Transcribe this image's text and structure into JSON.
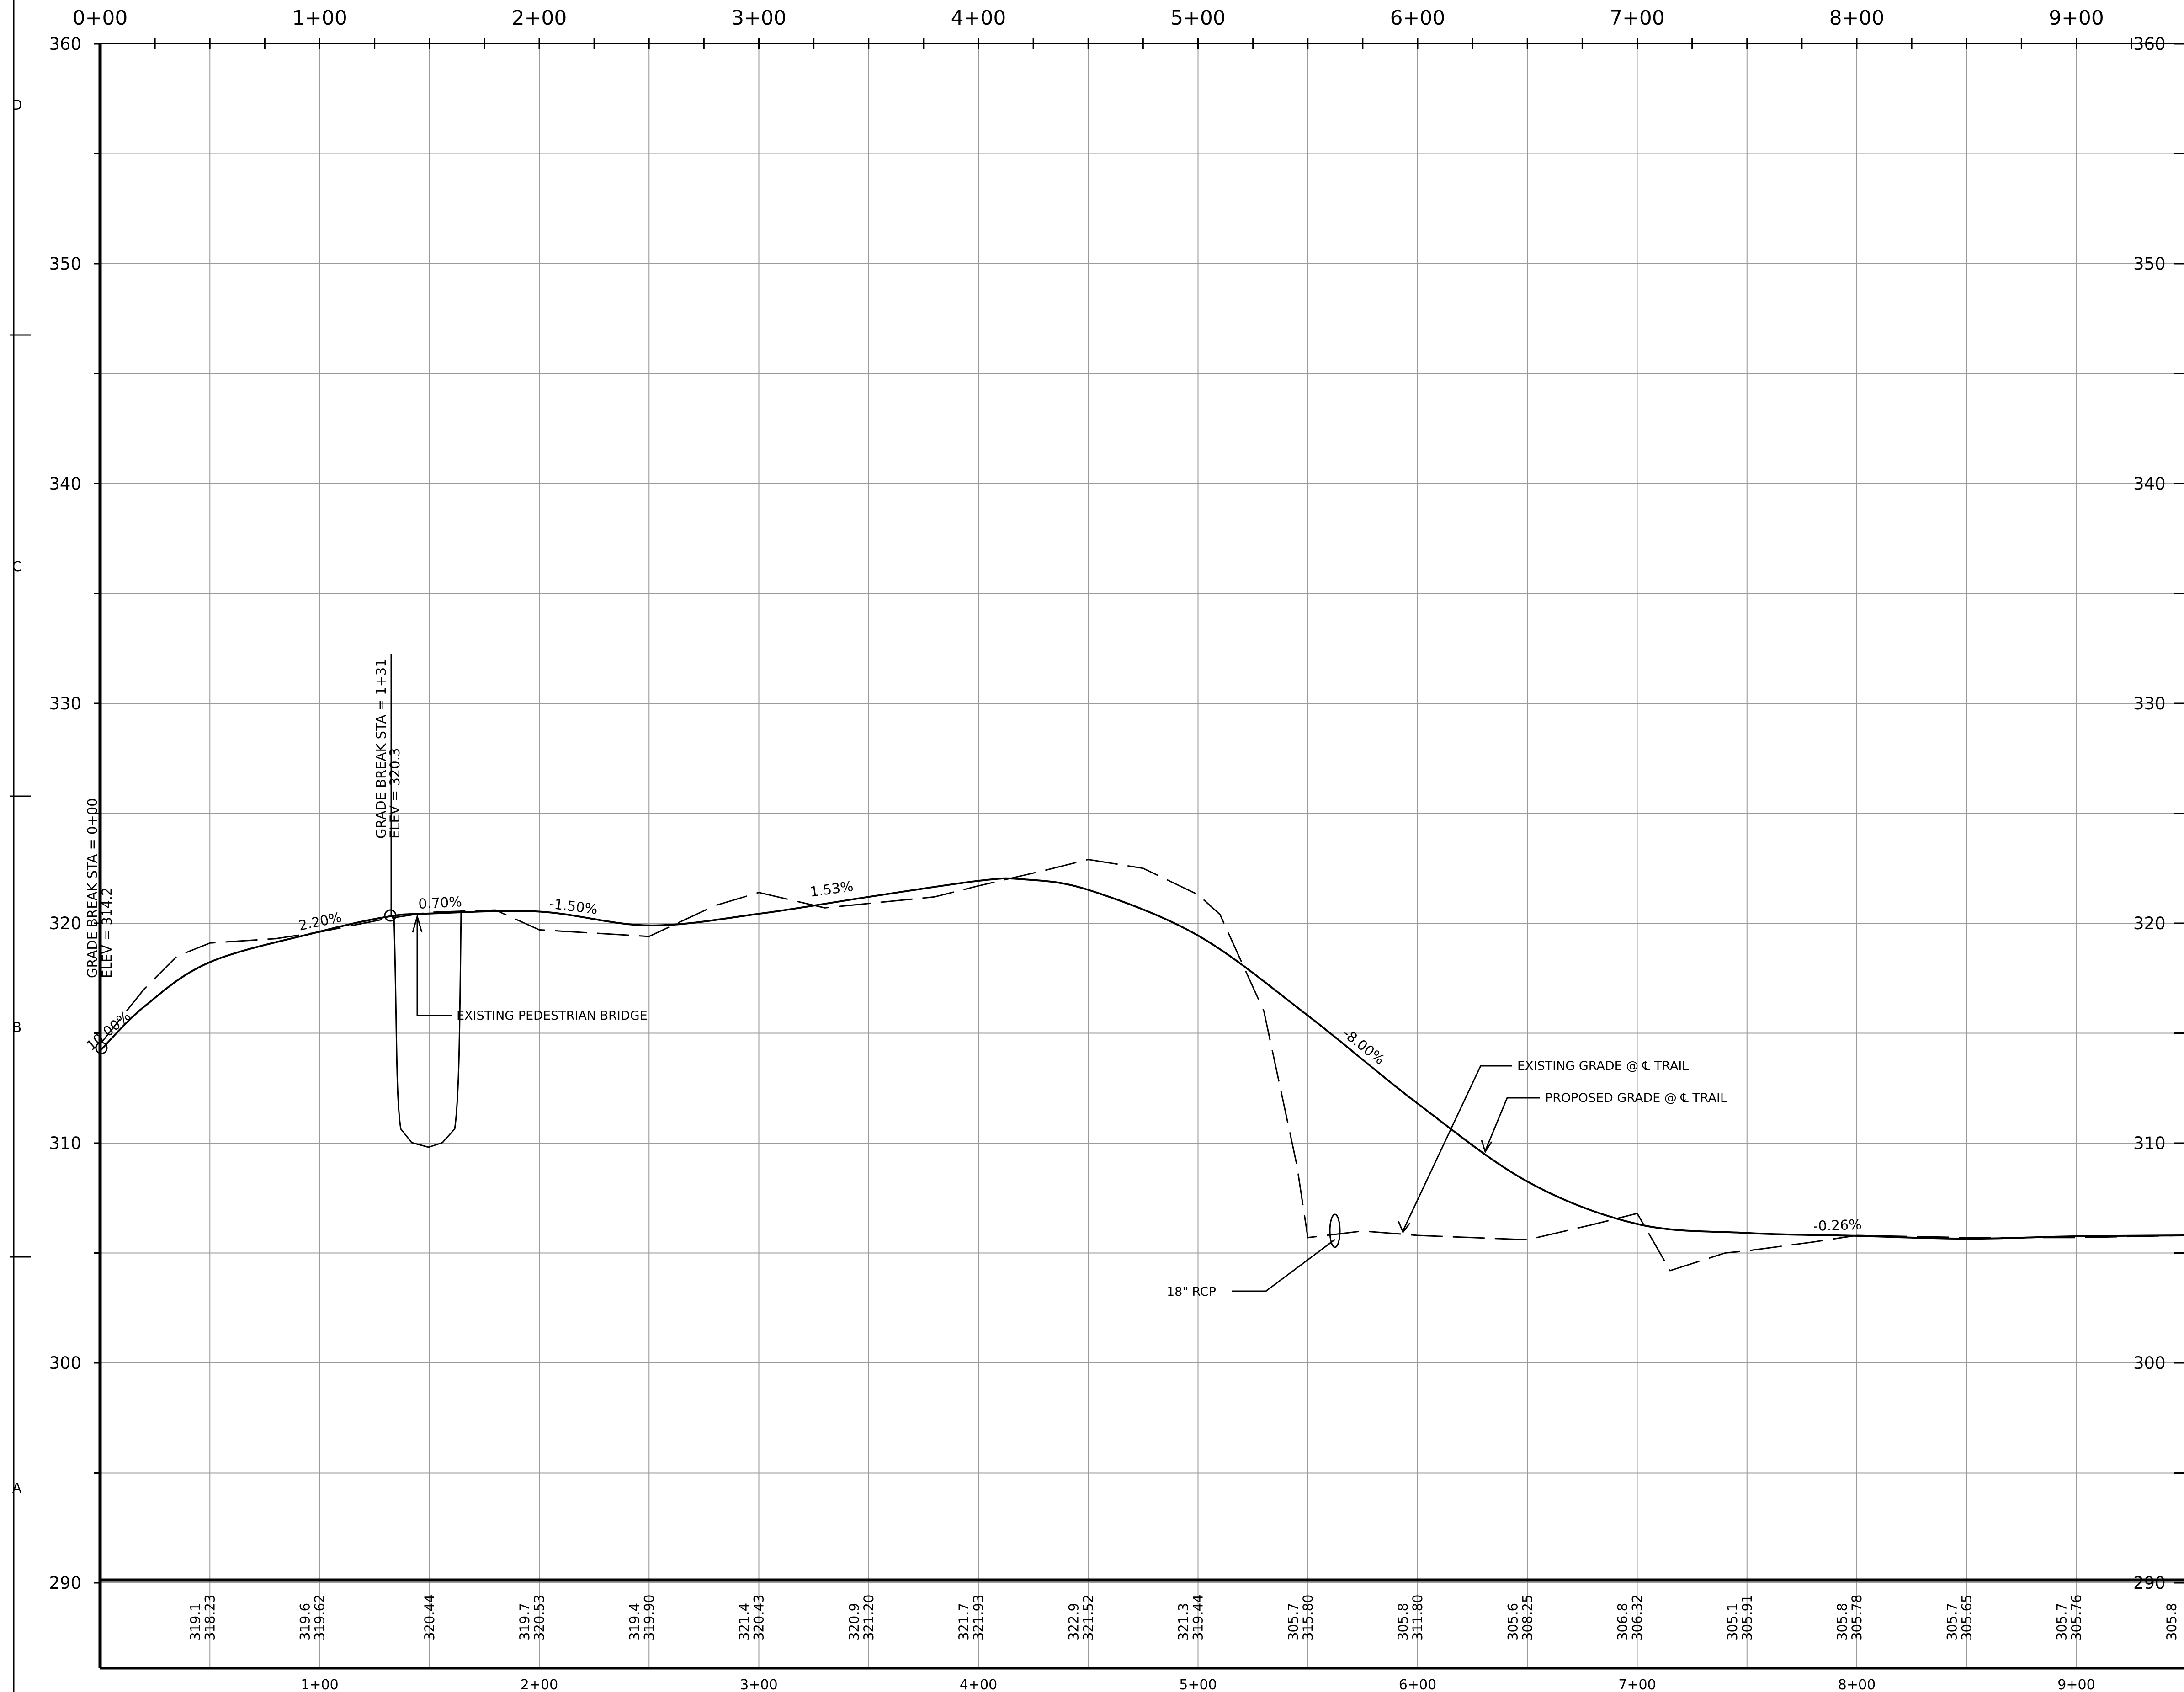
{
  "stations_top": [
    "0+00",
    "1+00",
    "2+00",
    "3+00",
    "4+00",
    "5+00",
    "6+00",
    "7+00",
    "8+00",
    "9+00",
    "9+"
  ],
  "stations_bottom": [
    "1+00",
    "2+00",
    "3+00",
    "4+00",
    "5+00",
    "6+00",
    "7+00",
    "8+00",
    "9+00"
  ],
  "elevations_left": [
    "360",
    "350",
    "340",
    "330",
    "320",
    "310",
    "300",
    "290"
  ],
  "elevations_right": [
    "360",
    "350",
    "340",
    "330",
    "320",
    "310",
    "300",
    "290"
  ],
  "zone_letters": [
    "D",
    "C",
    "B",
    "A"
  ],
  "grade_break_1": {
    "station_label": "GRADE BREAK STA = 0+00",
    "elev_label": "ELEV = 314.2"
  },
  "grade_break_2": {
    "station_label": "GRADE BREAK STA = 1+31",
    "elev_label": "ELEV = 320.3"
  },
  "slope_labels": [
    "10.00%",
    "2.20%",
    "0.70%",
    "-1.50%",
    "1.53%",
    "-8.00%",
    "-0.26%"
  ],
  "callouts": {
    "pedestrian_bridge": "EXISTING PEDESTRIAN BRIDGE",
    "existing_grade": "EXISTING GRADE @ ℄ TRAIL",
    "proposed_grade": "PROPOSED GRADE @ ℄ TRAIL",
    "rcp": "18\" RCP"
  },
  "elevation_table": [
    {
      "station": 50,
      "existing": "319.1",
      "proposed": "318.23"
    },
    {
      "station": 100,
      "existing": "319.6",
      "proposed": "319.62"
    },
    {
      "station": 150,
      "existing": "",
      "proposed": "320.44"
    },
    {
      "station": 200,
      "existing": "319.7",
      "proposed": "320.53"
    },
    {
      "station": 250,
      "existing": "319.4",
      "proposed": "319.90"
    },
    {
      "station": 300,
      "existing": "321.4",
      "proposed": "320.43"
    },
    {
      "station": 350,
      "existing": "320.9",
      "proposed": "321.20"
    },
    {
      "station": 400,
      "existing": "321.7",
      "proposed": "321.93"
    },
    {
      "station": 450,
      "existing": "322.9",
      "proposed": "321.52"
    },
    {
      "station": 500,
      "existing": "321.3",
      "proposed": "319.44"
    },
    {
      "station": 550,
      "existing": "305.7",
      "proposed": "315.80"
    },
    {
      "station": 600,
      "existing": "305.8",
      "proposed": "311.80"
    },
    {
      "station": 650,
      "existing": "305.6",
      "proposed": "308.25"
    },
    {
      "station": 700,
      "existing": "306.8",
      "proposed": "306.32"
    },
    {
      "station": 750,
      "existing": "305.1",
      "proposed": "305.91"
    },
    {
      "station": 800,
      "existing": "305.8",
      "proposed": "305.78"
    },
    {
      "station": 850,
      "existing": "305.7",
      "proposed": "305.65"
    },
    {
      "station": 900,
      "existing": "305.7",
      "proposed": "305.76"
    },
    {
      "station": 950,
      "existing": "305.8",
      "proposed": ""
    }
  ],
  "profiles": {
    "proposed": [
      [
        0,
        314.2
      ],
      [
        20,
        316.2
      ],
      [
        50,
        318.23
      ],
      [
        100,
        319.62
      ],
      [
        131,
        320.3
      ],
      [
        150,
        320.44
      ],
      [
        200,
        320.53
      ],
      [
        250,
        319.9
      ],
      [
        300,
        320.43
      ],
      [
        350,
        321.2
      ],
      [
        400,
        321.93
      ],
      [
        420,
        322.0
      ],
      [
        450,
        321.52
      ],
      [
        500,
        319.44
      ],
      [
        550,
        315.8
      ],
      [
        600,
        311.8
      ],
      [
        650,
        308.25
      ],
      [
        700,
        306.32
      ],
      [
        750,
        305.91
      ],
      [
        800,
        305.78
      ],
      [
        850,
        305.65
      ],
      [
        900,
        305.76
      ],
      [
        950,
        305.8
      ]
    ],
    "existing": [
      [
        0,
        314.5
      ],
      [
        20,
        317.0
      ],
      [
        35,
        318.5
      ],
      [
        50,
        319.1
      ],
      [
        80,
        319.3
      ],
      [
        100,
        319.6
      ],
      [
        130,
        320.2
      ],
      [
        150,
        320.5
      ],
      [
        180,
        320.6
      ],
      [
        200,
        319.7
      ],
      [
        250,
        319.4
      ],
      [
        280,
        320.8
      ],
      [
        300,
        321.4
      ],
      [
        330,
        320.7
      ],
      [
        350,
        320.9
      ],
      [
        380,
        321.2
      ],
      [
        400,
        321.7
      ],
      [
        430,
        322.4
      ],
      [
        450,
        322.9
      ],
      [
        475,
        322.5
      ],
      [
        500,
        321.3
      ],
      [
        510,
        320.4
      ],
      [
        530,
        316.0
      ],
      [
        545,
        309.0
      ],
      [
        550,
        305.7
      ],
      [
        575,
        306.0
      ],
      [
        600,
        305.8
      ],
      [
        625,
        305.7
      ],
      [
        650,
        305.6
      ],
      [
        680,
        306.3
      ],
      [
        700,
        306.8
      ],
      [
        715,
        304.2
      ],
      [
        740,
        305.0
      ],
      [
        750,
        305.1
      ],
      [
        780,
        305.5
      ],
      [
        800,
        305.8
      ],
      [
        850,
        305.7
      ],
      [
        900,
        305.7
      ],
      [
        950,
        305.8
      ]
    ]
  }
}
